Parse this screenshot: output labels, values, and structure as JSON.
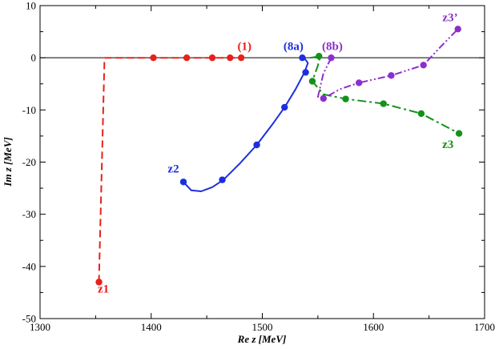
{
  "chart_data": {
    "type": "line",
    "xlabel": "Re z  [MeV]",
    "ylabel": "Im z  [MeV]",
    "xlim": [
      1300,
      1700
    ],
    "ylim": [
      -50,
      10
    ],
    "xticks": [
      1300,
      1400,
      1500,
      1600,
      1700
    ],
    "yticks": [
      -50,
      -40,
      -30,
      -20,
      -10,
      0,
      10
    ],
    "zero_line": true,
    "series": [
      {
        "name": "z1 path",
        "color": "#e8201a",
        "style": "dashed",
        "line": [
          [
            1353,
            -43
          ],
          [
            1358,
            0
          ],
          [
            1482,
            0
          ]
        ],
        "markers": [
          [
            1353,
            -43
          ],
          [
            1402,
            0
          ],
          [
            1432,
            0
          ],
          [
            1455,
            0
          ],
          [
            1471,
            0
          ],
          [
            1481,
            0
          ]
        ]
      },
      {
        "name": "z2 path",
        "color": "#1c2fe0",
        "style": "solid",
        "line": [
          [
            1429,
            -23.8
          ],
          [
            1436,
            -25.4
          ],
          [
            1445,
            -25.6
          ],
          [
            1455,
            -24.8
          ],
          [
            1465,
            -23.4
          ],
          [
            1480,
            -20.2
          ],
          [
            1495,
            -16.7
          ],
          [
            1510,
            -12.5
          ],
          [
            1520,
            -9.5
          ],
          [
            1530,
            -6
          ],
          [
            1538,
            -2.8
          ],
          [
            1541,
            -1
          ],
          [
            1538,
            -0.1
          ],
          [
            1536,
            0
          ]
        ],
        "markers": [
          [
            1429,
            -23.8
          ],
          [
            1464,
            -23.4
          ],
          [
            1495,
            -16.7
          ],
          [
            1520,
            -9.5
          ],
          [
            1539,
            -2.8
          ],
          [
            1536,
            0
          ]
        ]
      },
      {
        "name": "z3 path",
        "color": "#12921a",
        "style": "dashdot",
        "line": [
          [
            1543,
            0
          ],
          [
            1552,
            0.3
          ],
          [
            1550,
            -1.5
          ],
          [
            1545,
            -4.5
          ],
          [
            1555,
            -7
          ],
          [
            1575,
            -7.9
          ],
          [
            1609,
            -8.8
          ],
          [
            1643,
            -10.7
          ],
          [
            1677,
            -14.5
          ]
        ],
        "markers": [
          [
            1551,
            0.3
          ],
          [
            1545,
            -4.5
          ],
          [
            1575,
            -7.9
          ],
          [
            1609,
            -8.8
          ],
          [
            1643,
            -10.7
          ],
          [
            1677,
            -14.5
          ]
        ]
      },
      {
        "name": "z3' path",
        "color": "#8b2fcc",
        "style": "dashdotdot",
        "line": [
          [
            1562,
            0
          ],
          [
            1555,
            -3
          ],
          [
            1550,
            -7.5
          ],
          [
            1555,
            -7.8
          ],
          [
            1570,
            -6
          ],
          [
            1587,
            -4.8
          ],
          [
            1616,
            -3.4
          ],
          [
            1645,
            -1.4
          ],
          [
            1660,
            2
          ],
          [
            1676,
            5.5
          ]
        ],
        "markers": [
          [
            1562,
            0
          ],
          [
            1555,
            -7.8
          ],
          [
            1587,
            -4.8
          ],
          [
            1616,
            -3.4
          ],
          [
            1645,
            -1.4
          ],
          [
            1676,
            5.5
          ]
        ]
      }
    ],
    "annotations": [
      {
        "text": "(1)",
        "at": [
          1484,
          1.5
        ],
        "color": "#e8201a"
      },
      {
        "text": "(8a)",
        "at": [
          1528,
          1.5
        ],
        "color": "#1c2fe0"
      },
      {
        "text": "(8b)",
        "at": [
          1563,
          1.5
        ],
        "color": "#8b2fcc"
      },
      {
        "text": "z3’",
        "at": [
          1669,
          7
        ],
        "color": "#8b2fcc"
      },
      {
        "text": "z2",
        "at": [
          1420,
          -22
        ],
        "color": "#1c2fe0"
      },
      {
        "text": "z3",
        "at": [
          1667,
          -17.3
        ],
        "color": "#12921a"
      },
      {
        "text": "z1",
        "at": [
          1357,
          -45
        ],
        "color": "#e8201a"
      }
    ]
  }
}
